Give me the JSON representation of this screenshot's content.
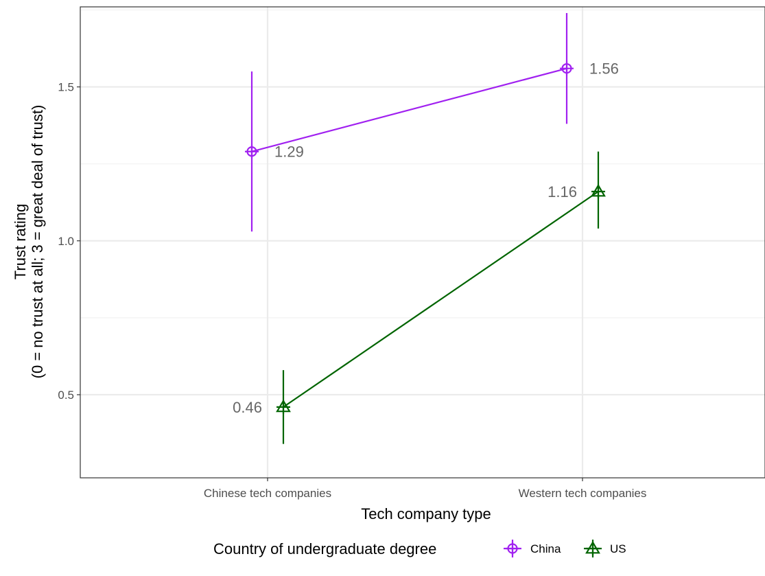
{
  "chart_data": {
    "type": "line",
    "xlabel": "Tech company type",
    "ylabel_line1": "Trust rating",
    "ylabel_line2": "(0 = no trust at all; 3 = great deal of trust)",
    "categories": [
      "Chinese tech companies",
      "Western tech companies"
    ],
    "ylim": [
      0.23,
      1.76
    ],
    "yticks": [
      0.5,
      1.0,
      1.5
    ],
    "ytick_labels": [
      "0.5",
      "1.0",
      "1.5"
    ],
    "grid": true,
    "legend": {
      "title": "Country of undergraduate degree",
      "position": "bottom"
    },
    "series": [
      {
        "name": "China",
        "color": "#a020f0",
        "marker": "circle-plus",
        "values": [
          1.29,
          1.56
        ],
        "lower": [
          1.03,
          1.38
        ],
        "upper": [
          1.55,
          1.74
        ],
        "labels": [
          "1.29",
          "1.56"
        ]
      },
      {
        "name": "US",
        "color": "#006400",
        "marker": "triangle-plus",
        "values": [
          0.46,
          1.16
        ],
        "lower": [
          0.34,
          1.04
        ],
        "upper": [
          0.58,
          1.29
        ],
        "labels": [
          "0.46",
          "1.16"
        ]
      }
    ]
  }
}
